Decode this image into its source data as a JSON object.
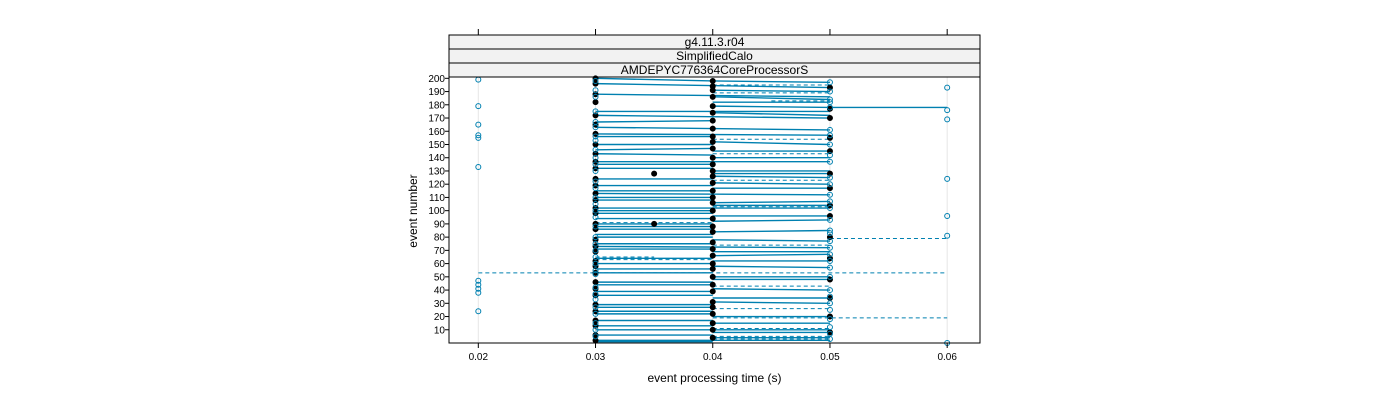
{
  "chart_data": {
    "type": "scatter",
    "strips": [
      "g4.11.3.r04",
      "SimplifiedCalo",
      "AMDEPYC776364CoreProcessorS"
    ],
    "xlabel": "event processing time (s)",
    "ylabel": "event number",
    "xlim": [
      0.0175,
      0.0628
    ],
    "ylim": [
      0,
      201
    ],
    "x_ticks": [
      0.02,
      0.03,
      0.04,
      0.05,
      0.06
    ],
    "x_tick_labels": [
      "0.02",
      "0.03",
      "0.04",
      "0.05",
      "0.06"
    ],
    "y_ticks": [
      10,
      20,
      30,
      40,
      50,
      60,
      70,
      80,
      90,
      100,
      110,
      120,
      130,
      140,
      150,
      160,
      170,
      180,
      190,
      200
    ],
    "y_tick_labels": [
      "10",
      "20",
      "30",
      "40",
      "50",
      "60",
      "70",
      "80",
      "90",
      "100",
      "110",
      "120",
      "130",
      "140",
      "150",
      "160",
      "170",
      "180",
      "190",
      "200"
    ],
    "grid": "vertical lines at x ticks",
    "colors": {
      "series": "#0080b0",
      "points_black": "#000000",
      "strip_bg": "#f2f2f2",
      "grid": "#e6e6e6"
    },
    "series": [
      {
        "marker": "filled-black",
        "points": [
          [
            0.03,
            200
          ],
          [
            0.04,
            198
          ],
          [
            0.03,
            196
          ],
          [
            0.04,
            194
          ],
          [
            0.05,
            193
          ],
          [
            0.04,
            191
          ],
          [
            0.03,
            188
          ],
          [
            0.04,
            186
          ],
          [
            0.03,
            182
          ],
          [
            0.04,
            179
          ],
          [
            0.05,
            177
          ],
          [
            0.04,
            174
          ],
          [
            0.03,
            172
          ],
          [
            0.05,
            170
          ],
          [
            0.04,
            168
          ],
          [
            0.03,
            165
          ],
          [
            0.04,
            162
          ],
          [
            0.03,
            158
          ],
          [
            0.04,
            156
          ],
          [
            0.05,
            155
          ],
          [
            0.04,
            152
          ],
          [
            0.03,
            150
          ],
          [
            0.04,
            147
          ],
          [
            0.05,
            145
          ],
          [
            0.03,
            143
          ],
          [
            0.04,
            140
          ],
          [
            0.03,
            137
          ],
          [
            0.04,
            135
          ],
          [
            0.03,
            132
          ],
          [
            0.04,
            130
          ],
          [
            0.035,
            128
          ],
          [
            0.05,
            128
          ],
          [
            0.04,
            126
          ],
          [
            0.03,
            124
          ],
          [
            0.04,
            121
          ],
          [
            0.03,
            119
          ],
          [
            0.05,
            117
          ],
          [
            0.04,
            115
          ],
          [
            0.03,
            113
          ],
          [
            0.04,
            110
          ],
          [
            0.03,
            108
          ],
          [
            0.04,
            106
          ],
          [
            0.05,
            104
          ],
          [
            0.03,
            102
          ],
          [
            0.04,
            100
          ],
          [
            0.03,
            98
          ],
          [
            0.05,
            96
          ],
          [
            0.04,
            94
          ],
          [
            0.035,
            90
          ],
          [
            0.03,
            90
          ],
          [
            0.04,
            88
          ],
          [
            0.03,
            86
          ],
          [
            0.04,
            84
          ],
          [
            0.05,
            80
          ],
          [
            0.03,
            78
          ],
          [
            0.04,
            76
          ],
          [
            0.03,
            73
          ],
          [
            0.04,
            71
          ],
          [
            0.03,
            69
          ],
          [
            0.04,
            66
          ],
          [
            0.05,
            64
          ],
          [
            0.03,
            62
          ],
          [
            0.04,
            60
          ],
          [
            0.03,
            58
          ],
          [
            0.04,
            56
          ],
          [
            0.03,
            53
          ],
          [
            0.04,
            50
          ],
          [
            0.05,
            48
          ],
          [
            0.03,
            46
          ],
          [
            0.04,
            44
          ],
          [
            0.03,
            41
          ],
          [
            0.04,
            39
          ],
          [
            0.03,
            36
          ],
          [
            0.05,
            34
          ],
          [
            0.04,
            31
          ],
          [
            0.03,
            29
          ],
          [
            0.04,
            27
          ],
          [
            0.03,
            24
          ],
          [
            0.04,
            22
          ],
          [
            0.05,
            20
          ],
          [
            0.03,
            17
          ],
          [
            0.04,
            15
          ],
          [
            0.03,
            13
          ],
          [
            0.04,
            10
          ],
          [
            0.05,
            8
          ],
          [
            0.03,
            6
          ],
          [
            0.04,
            4
          ],
          [
            0.03,
            2
          ]
        ]
      },
      {
        "marker": "open-blue",
        "points": [
          [
            0.02,
            199
          ],
          [
            0.03,
            198
          ],
          [
            0.05,
            197
          ],
          [
            0.06,
            193
          ],
          [
            0.03,
            191
          ],
          [
            0.05,
            190
          ],
          [
            0.03,
            186
          ],
          [
            0.05,
            184
          ],
          [
            0.05,
            182
          ],
          [
            0.02,
            179
          ],
          [
            0.05,
            178
          ],
          [
            0.06,
            176
          ],
          [
            0.03,
            175
          ],
          [
            0.06,
            169
          ],
          [
            0.03,
            167
          ],
          [
            0.02,
            165
          ],
          [
            0.03,
            163
          ],
          [
            0.05,
            161
          ],
          [
            0.02,
            157
          ],
          [
            0.02,
            155
          ],
          [
            0.03,
            156
          ],
          [
            0.05,
            157
          ],
          [
            0.03,
            153
          ],
          [
            0.05,
            150
          ],
          [
            0.03,
            146
          ],
          [
            0.05,
            142
          ],
          [
            0.03,
            140
          ],
          [
            0.05,
            137
          ],
          [
            0.03,
            135
          ],
          [
            0.02,
            133
          ],
          [
            0.03,
            130
          ],
          [
            0.05,
            125
          ],
          [
            0.06,
            124
          ],
          [
            0.03,
            122
          ],
          [
            0.05,
            120
          ],
          [
            0.03,
            117
          ],
          [
            0.05,
            112
          ],
          [
            0.03,
            110
          ],
          [
            0.05,
            107
          ],
          [
            0.03,
            105
          ],
          [
            0.05,
            102
          ],
          [
            0.03,
            100
          ],
          [
            0.06,
            96
          ],
          [
            0.03,
            95
          ],
          [
            0.05,
            93
          ],
          [
            0.03,
            88
          ],
          [
            0.05,
            85
          ],
          [
            0.05,
            83
          ],
          [
            0.06,
            81
          ],
          [
            0.03,
            80
          ],
          [
            0.05,
            77
          ],
          [
            0.03,
            75
          ],
          [
            0.05,
            72
          ],
          [
            0.03,
            70
          ],
          [
            0.05,
            67
          ],
          [
            0.03,
            65
          ],
          [
            0.05,
            62
          ],
          [
            0.03,
            60
          ],
          [
            0.05,
            57
          ],
          [
            0.03,
            55
          ],
          [
            0.03,
            52
          ],
          [
            0.05,
            50
          ],
          [
            0.02,
            47
          ],
          [
            0.02,
            44
          ],
          [
            0.02,
            41
          ],
          [
            0.02,
            38
          ],
          [
            0.03,
            42
          ],
          [
            0.05,
            40
          ],
          [
            0.03,
            37
          ],
          [
            0.05,
            35
          ],
          [
            0.03,
            33
          ],
          [
            0.05,
            30
          ],
          [
            0.03,
            27
          ],
          [
            0.05,
            25
          ],
          [
            0.02,
            24
          ],
          [
            0.03,
            22
          ],
          [
            0.05,
            18
          ],
          [
            0.03,
            15
          ],
          [
            0.05,
            12
          ],
          [
            0.03,
            10
          ],
          [
            0.05,
            7
          ],
          [
            0.03,
            5
          ],
          [
            0.05,
            3
          ],
          [
            0.06,
            0
          ]
        ]
      }
    ],
    "segments": [
      [
        0.03,
        200,
        0.04,
        198
      ],
      [
        0.04,
        198,
        0.05,
        197
      ],
      [
        0.03,
        196,
        0.05,
        193
      ],
      [
        0.04,
        191,
        0.05,
        190
      ],
      [
        0.03,
        188,
        0.05,
        186
      ],
      [
        0.04,
        186,
        0.05,
        184
      ],
      [
        0.04,
        182,
        0.05,
        182
      ],
      [
        0.04,
        179,
        0.05,
        178
      ],
      [
        0.05,
        178,
        0.06,
        178
      ],
      [
        0.03,
        175,
        0.05,
        175
      ],
      [
        0.04,
        174,
        0.05,
        172
      ],
      [
        0.03,
        172,
        0.05,
        170
      ],
      [
        0.03,
        167,
        0.04,
        168
      ],
      [
        0.03,
        163,
        0.04,
        162
      ],
      [
        0.04,
        162,
        0.05,
        161
      ],
      [
        0.03,
        158,
        0.05,
        157
      ],
      [
        0.03,
        156,
        0.04,
        156
      ],
      [
        0.04,
        152,
        0.05,
        150
      ],
      [
        0.03,
        150,
        0.04,
        150
      ],
      [
        0.03,
        146,
        0.04,
        147
      ],
      [
        0.04,
        145,
        0.05,
        145
      ],
      [
        0.03,
        143,
        0.04,
        142
      ],
      [
        0.04,
        140,
        0.05,
        140
      ],
      [
        0.03,
        137,
        0.05,
        137
      ],
      [
        0.03,
        135,
        0.04,
        135
      ],
      [
        0.03,
        132,
        0.04,
        132
      ],
      [
        0.04,
        130,
        0.05,
        130
      ],
      [
        0.04,
        128,
        0.05,
        128
      ],
      [
        0.04,
        126,
        0.05,
        125
      ],
      [
        0.03,
        124,
        0.04,
        124
      ],
      [
        0.04,
        121,
        0.05,
        120
      ],
      [
        0.03,
        119,
        0.04,
        119
      ],
      [
        0.04,
        117,
        0.05,
        117
      ],
      [
        0.03,
        115,
        0.04,
        115
      ],
      [
        0.03,
        113,
        0.05,
        112
      ],
      [
        0.03,
        110,
        0.04,
        110
      ],
      [
        0.03,
        108,
        0.04,
        108
      ],
      [
        0.04,
        106,
        0.05,
        107
      ],
      [
        0.04,
        104,
        0.05,
        104
      ],
      [
        0.03,
        102,
        0.05,
        102
      ],
      [
        0.03,
        100,
        0.04,
        100
      ],
      [
        0.03,
        98,
        0.04,
        98
      ],
      [
        0.04,
        96,
        0.05,
        96
      ],
      [
        0.03,
        94,
        0.04,
        94
      ],
      [
        0.04,
        92,
        0.05,
        93
      ],
      [
        0.03,
        90,
        0.04,
        90
      ],
      [
        0.03,
        88,
        0.04,
        88
      ],
      [
        0.03,
        86,
        0.04,
        86
      ],
      [
        0.04,
        84,
        0.05,
        85
      ],
      [
        0.03,
        82,
        0.04,
        82
      ],
      [
        0.03,
        80,
        0.04,
        80
      ],
      [
        0.04,
        78,
        0.05,
        77
      ],
      [
        0.03,
        75,
        0.04,
        75
      ],
      [
        0.03,
        73,
        0.05,
        72
      ],
      [
        0.03,
        71,
        0.04,
        71
      ],
      [
        0.04,
        69,
        0.05,
        69
      ],
      [
        0.04,
        66,
        0.05,
        67
      ],
      [
        0.03,
        64,
        0.04,
        64
      ],
      [
        0.04,
        62,
        0.05,
        62
      ],
      [
        0.03,
        60,
        0.04,
        60
      ],
      [
        0.04,
        58,
        0.05,
        57
      ],
      [
        0.03,
        56,
        0.04,
        56
      ],
      [
        0.03,
        53,
        0.04,
        53
      ],
      [
        0.04,
        50,
        0.05,
        50
      ],
      [
        0.04,
        48,
        0.05,
        48
      ],
      [
        0.03,
        46,
        0.04,
        46
      ],
      [
        0.03,
        44,
        0.04,
        44
      ],
      [
        0.04,
        41,
        0.05,
        40
      ],
      [
        0.03,
        39,
        0.04,
        39
      ],
      [
        0.03,
        36,
        0.04,
        36
      ],
      [
        0.04,
        34,
        0.05,
        34
      ],
      [
        0.04,
        31,
        0.05,
        30
      ],
      [
        0.03,
        29,
        0.04,
        29
      ],
      [
        0.03,
        27,
        0.04,
        27
      ],
      [
        0.03,
        24,
        0.04,
        24
      ],
      [
        0.03,
        22,
        0.04,
        22
      ],
      [
        0.04,
        20,
        0.05,
        20
      ],
      [
        0.03,
        17,
        0.04,
        17
      ],
      [
        0.04,
        15,
        0.05,
        15
      ],
      [
        0.03,
        13,
        0.04,
        13
      ],
      [
        0.03,
        10,
        0.05,
        10
      ],
      [
        0.04,
        8,
        0.05,
        8
      ],
      [
        0.03,
        6,
        0.04,
        6
      ],
      [
        0.04,
        4,
        0.05,
        4
      ],
      [
        0.03,
        2,
        0.05,
        2
      ],
      [
        0.03,
        1,
        0.04,
        1
      ]
    ],
    "dashed_segments": [
      [
        0.04,
        195,
        0.05,
        195
      ],
      [
        0.04,
        189,
        0.05,
        189
      ],
      [
        0.045,
        183,
        0.05,
        183
      ],
      [
        0.04,
        154,
        0.05,
        154
      ],
      [
        0.04,
        143,
        0.05,
        143
      ],
      [
        0.04,
        123,
        0.05,
        123
      ],
      [
        0.04,
        103,
        0.05,
        103
      ],
      [
        0.03,
        91,
        0.04,
        91
      ],
      [
        0.05,
        79,
        0.06,
        79
      ],
      [
        0.04,
        74,
        0.05,
        74
      ],
      [
        0.03,
        65,
        0.035,
        65
      ],
      [
        0.03,
        63,
        0.04,
        63
      ],
      [
        0.02,
        53,
        0.06,
        53
      ],
      [
        0.04,
        43,
        0.05,
        43
      ],
      [
        0.04,
        26,
        0.05,
        26
      ],
      [
        0.04,
        19,
        0.06,
        19
      ],
      [
        0.04,
        11,
        0.05,
        11
      ],
      [
        0.04,
        5,
        0.05,
        5
      ],
      [
        0.04,
        3,
        0.05,
        3
      ]
    ]
  }
}
